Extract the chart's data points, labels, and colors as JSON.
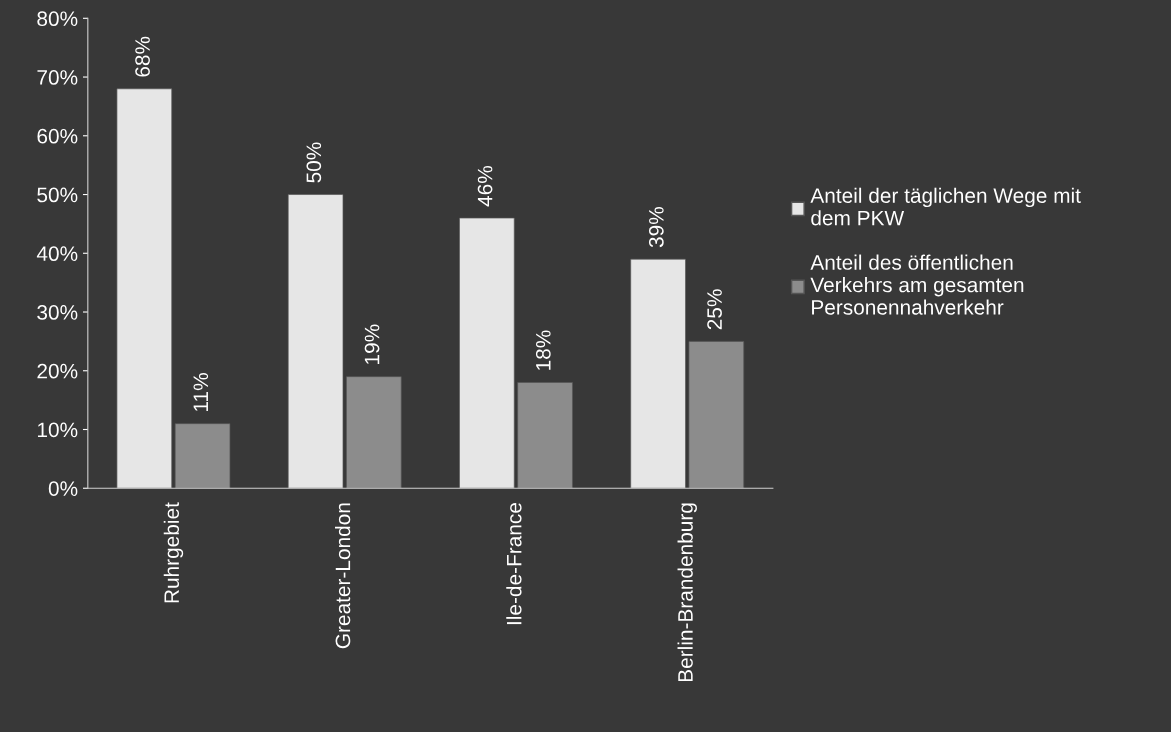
{
  "chart_data": {
    "type": "bar",
    "categories": [
      "Ruhrgebiet",
      "Greater-London",
      "Ile-de-France",
      "Berlin-Brandenburg"
    ],
    "series": [
      {
        "name": "Anteil der täglichen Wege mit\ndem PKW",
        "color": "#e6e6e6",
        "values": [
          68,
          50,
          46,
          39
        ],
        "value_labels": [
          "68%",
          "50%",
          "46%",
          "39%"
        ]
      },
      {
        "name": "Anteil des öffentlichen\nVerkehrs am gesamten\nPersonennahverkehr",
        "color": "#8c8c8c",
        "values": [
          11,
          19,
          18,
          25
        ],
        "value_labels": [
          "11%",
          "19%",
          "18%",
          "25%"
        ]
      }
    ],
    "ylim": [
      0,
      80
    ],
    "yticks": [
      {
        "value": 0,
        "label": "0%"
      },
      {
        "value": 10,
        "label": "10%"
      },
      {
        "value": 20,
        "label": "20%"
      },
      {
        "value": 30,
        "label": "30%"
      },
      {
        "value": 40,
        "label": "40%"
      },
      {
        "value": 50,
        "label": "50%"
      },
      {
        "value": 60,
        "label": "60%"
      },
      {
        "value": 70,
        "label": "70%"
      },
      {
        "value": 80,
        "label": "80%"
      }
    ],
    "grid": false,
    "legend": "right"
  }
}
